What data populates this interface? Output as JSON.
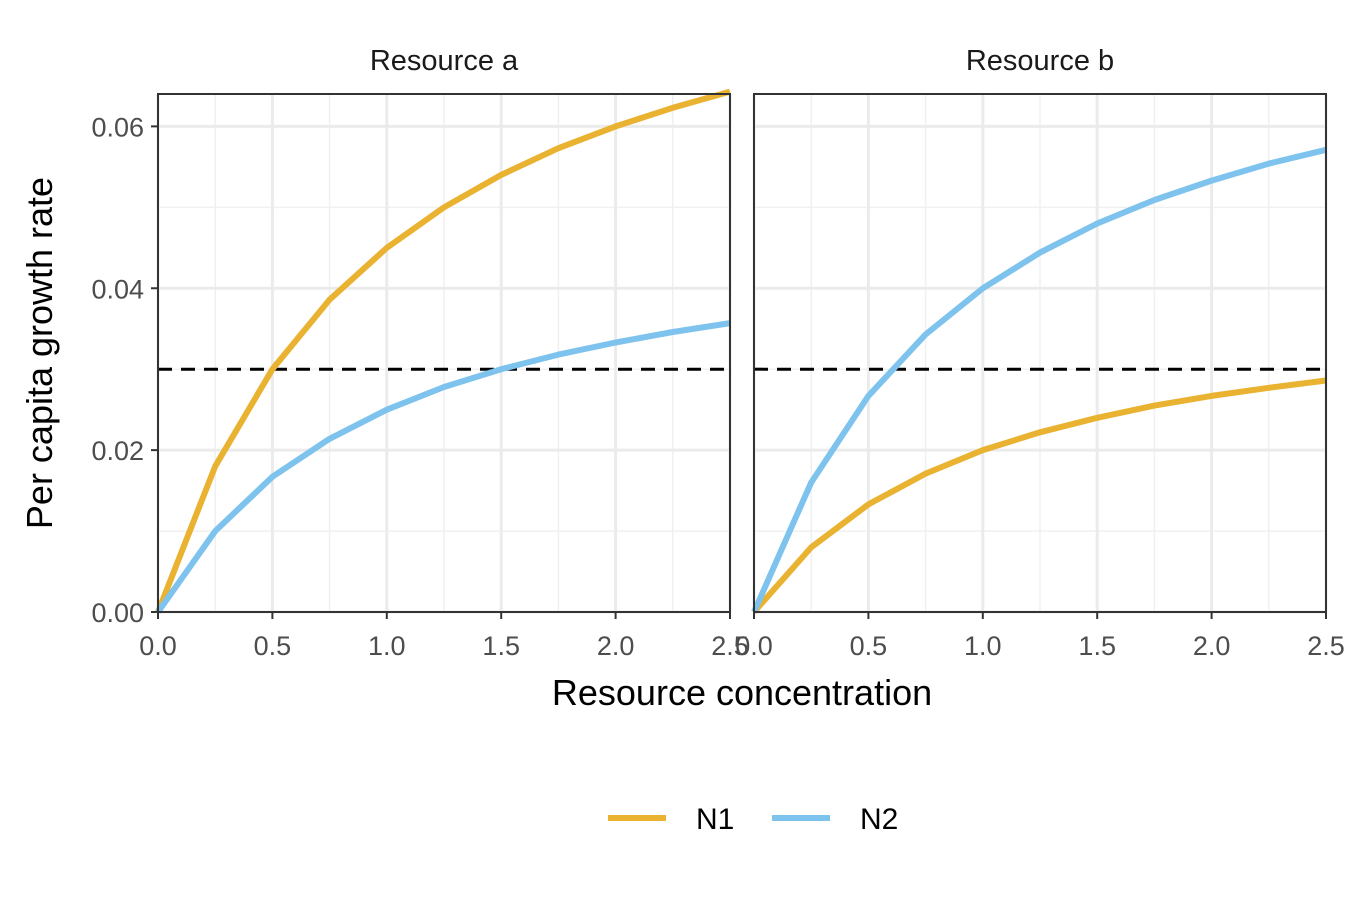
{
  "chart_data": {
    "type": "line",
    "xlabel": "Resource concentration",
    "ylabel": "Per capita growth rate",
    "xlim": [
      0,
      2.5
    ],
    "ylim": [
      0,
      0.064
    ],
    "x_ticks": [
      "0.0",
      "0.5",
      "1.0",
      "1.5",
      "2.0",
      "2.5"
    ],
    "y_ticks": [
      "0.00",
      "0.02",
      "0.04",
      "0.06"
    ],
    "grid": true,
    "legend_position": "bottom",
    "reference_line": {
      "y": 0.03,
      "style": "dashed",
      "color": "#000000"
    },
    "series_colors": {
      "N1": "#E9B231",
      "N2": "#7DC3ED"
    },
    "panels": [
      {
        "title": "Resource a",
        "series": [
          {
            "name": "N1",
            "x": [
              0,
              0.25,
              0.5,
              0.75,
              1.0,
              1.25,
              1.5,
              1.75,
              2.0,
              2.25,
              2.5
            ],
            "y": [
              0,
              0.018,
              0.03,
              0.0386,
              0.045,
              0.05,
              0.054,
              0.0573,
              0.06,
              0.0623,
              0.0643
            ]
          },
          {
            "name": "N2",
            "x": [
              0,
              0.25,
              0.5,
              0.75,
              1.0,
              1.25,
              1.5,
              1.75,
              2.0,
              2.25,
              2.5
            ],
            "y": [
              0,
              0.01,
              0.0167,
              0.0214,
              0.025,
              0.0278,
              0.03,
              0.0318,
              0.0333,
              0.0346,
              0.0357
            ]
          }
        ]
      },
      {
        "title": "Resource b",
        "series": [
          {
            "name": "N1",
            "x": [
              0,
              0.25,
              0.5,
              0.75,
              1.0,
              1.25,
              1.5,
              1.75,
              2.0,
              2.25,
              2.5
            ],
            "y": [
              0,
              0.008,
              0.0133,
              0.0171,
              0.02,
              0.0222,
              0.024,
              0.0255,
              0.0267,
              0.0277,
              0.0286
            ]
          },
          {
            "name": "N2",
            "x": [
              0,
              0.25,
              0.5,
              0.75,
              1.0,
              1.25,
              1.5,
              1.75,
              2.0,
              2.25,
              2.5
            ],
            "y": [
              0,
              0.016,
              0.0267,
              0.0343,
              0.04,
              0.0444,
              0.048,
              0.0509,
              0.0533,
              0.0554,
              0.0571
            ]
          }
        ]
      }
    ],
    "legend": [
      "N1",
      "N2"
    ]
  }
}
